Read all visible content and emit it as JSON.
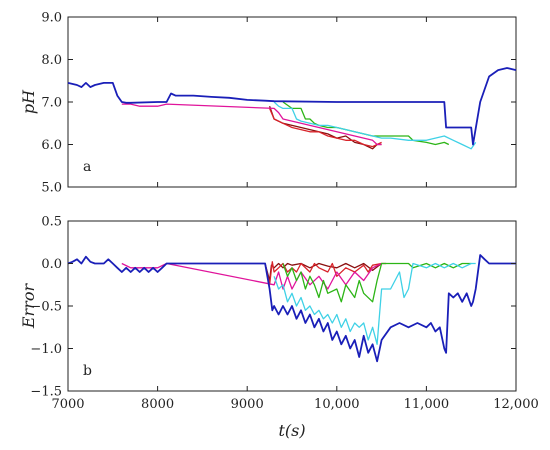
{
  "chart_data": [
    {
      "type": "line",
      "panel_label": "a",
      "title": "",
      "xlabel": "",
      "ylabel": "pH",
      "xlim": [
        7000,
        12000
      ],
      "ylim": [
        5.0,
        9.0
      ],
      "xticks": [
        7000,
        8000,
        9000,
        10000,
        11000,
        12000
      ],
      "xtick_labels": [
        "",
        "",
        "",
        "",
        "",
        ""
      ],
      "yticks": [
        5.0,
        6.0,
        7.0,
        8.0,
        9.0
      ],
      "ytick_labels": [
        "5.0",
        "6.0",
        "7.0",
        "8.0",
        "9.0"
      ],
      "grid": false,
      "series": [
        {
          "color": "#8a0f0f",
          "x": [
            9250,
            9300,
            9400,
            9500,
            9600,
            9700,
            9800,
            9900,
            10000,
            10100,
            10200,
            10300,
            10400,
            10450,
            10500
          ],
          "y": [
            6.9,
            6.6,
            6.5,
            6.45,
            6.4,
            6.35,
            6.3,
            6.25,
            6.15,
            6.2,
            6.05,
            6.0,
            5.9,
            6.0,
            6.0
          ]
        },
        {
          "color": "#d8232a",
          "x": [
            9250,
            9300,
            9400,
            9500,
            9600,
            9700,
            9800,
            9900,
            10000,
            10100,
            10200,
            10300,
            10400,
            10450,
            10500
          ],
          "y": [
            6.85,
            6.6,
            6.5,
            6.4,
            6.35,
            6.3,
            6.3,
            6.2,
            6.15,
            6.1,
            6.1,
            6.0,
            5.95,
            6.0,
            6.05
          ]
        },
        {
          "color": "#e0149b",
          "x": [
            7600,
            7700,
            7800,
            8000,
            8100,
            9300,
            9350,
            9400,
            9500,
            9600,
            9700,
            9800,
            9900,
            10000,
            10100,
            10200,
            10300,
            10400,
            10450,
            10500
          ],
          "y": [
            6.95,
            6.95,
            6.9,
            6.9,
            6.95,
            6.85,
            6.75,
            6.6,
            6.55,
            6.5,
            6.45,
            6.4,
            6.35,
            6.3,
            6.25,
            6.2,
            6.15,
            6.1,
            6.0,
            6.0
          ]
        },
        {
          "color": "#2cb516",
          "x": [
            9400,
            9500,
            9600,
            9650,
            9700,
            9750,
            9800,
            9900,
            10000,
            10100,
            10200,
            10300,
            10400,
            10500,
            10800,
            10850,
            11000,
            11100,
            11200,
            11250
          ],
          "y": [
            7.0,
            6.85,
            6.85,
            6.6,
            6.6,
            6.5,
            6.45,
            6.4,
            6.4,
            6.35,
            6.3,
            6.25,
            6.2,
            6.2,
            6.2,
            6.1,
            6.05,
            6.0,
            6.05,
            6.0
          ]
        },
        {
          "color": "#3fd1e6",
          "x": [
            9300,
            9350,
            9400,
            9500,
            9550,
            9600,
            9700,
            9800,
            9900,
            10000,
            10100,
            10200,
            10300,
            10400,
            10500,
            10600,
            10800,
            10850,
            11000,
            11100,
            11200,
            11300,
            11400,
            11500,
            11550
          ],
          "y": [
            7.0,
            6.9,
            6.85,
            6.85,
            6.6,
            6.55,
            6.5,
            6.45,
            6.45,
            6.4,
            6.35,
            6.3,
            6.25,
            6.2,
            6.15,
            6.15,
            6.1,
            6.1,
            6.1,
            6.15,
            6.2,
            6.1,
            6.0,
            5.9,
            6.05
          ]
        },
        {
          "color": "#1a1fb8",
          "x": [
            7000,
            7100,
            7150,
            7200,
            7250,
            7300,
            7400,
            7500,
            7550,
            7600,
            7650,
            7700,
            8000,
            8100,
            8150,
            8200,
            8400,
            8600,
            8800,
            9000,
            9200,
            9300,
            10000,
            11000,
            11200,
            11220,
            11500,
            11520,
            11600,
            11700,
            11800,
            11900,
            12000
          ],
          "y": [
            7.45,
            7.4,
            7.35,
            7.45,
            7.35,
            7.4,
            7.45,
            7.45,
            7.15,
            7.0,
            6.98,
            6.98,
            7.0,
            7.0,
            7.2,
            7.15,
            7.15,
            7.12,
            7.1,
            7.05,
            7.03,
            7.02,
            7.0,
            7.0,
            7.0,
            6.4,
            6.4,
            6.0,
            7.0,
            7.6,
            7.75,
            7.8,
            7.75
          ]
        }
      ]
    },
    {
      "type": "line",
      "panel_label": "b",
      "title": "",
      "xlabel": "t(s)",
      "ylabel": "Error",
      "xlim": [
        7000,
        12000
      ],
      "ylim": [
        -1.5,
        0.5
      ],
      "xticks": [
        7000,
        8000,
        9000,
        10000,
        11000,
        12000
      ],
      "xtick_labels": [
        "7000",
        "8000",
        "9000",
        "10,000",
        "11,000",
        "12,000"
      ],
      "yticks": [
        -1.5,
        -1.0,
        -0.5,
        0.0,
        0.5
      ],
      "ytick_labels": [
        "−1.5",
        "−1.0",
        "−0.5",
        "0.0",
        "0.5"
      ],
      "grid": false,
      "series": [
        {
          "color": "#8a0f0f",
          "x": [
            9200,
            9250,
            9270,
            9300,
            9350,
            9400,
            9450,
            9500,
            9600,
            9700,
            9800,
            9900,
            10000,
            10100,
            10200,
            10300,
            10400,
            10500,
            10550
          ],
          "y": [
            0.0,
            -0.2,
            -0.02,
            -0.05,
            0.0,
            -0.05,
            0.0,
            -0.02,
            0.0,
            -0.05,
            0.0,
            -0.03,
            -0.05,
            0.0,
            -0.05,
            0.0,
            -0.08,
            0.0,
            0.0
          ]
        },
        {
          "color": "#d8232a",
          "x": [
            9200,
            9250,
            9280,
            9300,
            9350,
            9400,
            9450,
            9500,
            9550,
            9600,
            9700,
            9750,
            9800,
            9900,
            9950,
            10000,
            10100,
            10200,
            10300,
            10350,
            10400,
            10500
          ],
          "y": [
            0.0,
            -0.25,
            0.02,
            -0.1,
            -0.05,
            0.0,
            -0.1,
            -0.05,
            -0.1,
            0.0,
            -0.1,
            0.0,
            -0.05,
            -0.1,
            0.0,
            -0.15,
            -0.05,
            -0.1,
            -0.02,
            -0.1,
            -0.02,
            0.0
          ]
        },
        {
          "color": "#e0149b",
          "x": [
            7600,
            7700,
            7800,
            8000,
            8100,
            9300,
            9350,
            9400,
            9450,
            9500,
            9600,
            9700,
            9800,
            9900,
            10000,
            10100,
            10200,
            10300,
            10400,
            10500
          ],
          "y": [
            0.0,
            -0.05,
            -0.05,
            -0.05,
            0.0,
            -0.25,
            -0.1,
            -0.3,
            -0.15,
            -0.3,
            -0.1,
            -0.25,
            -0.15,
            -0.3,
            -0.1,
            -0.25,
            -0.1,
            -0.2,
            -0.05,
            0.0
          ]
        },
        {
          "color": "#2cb516",
          "x": [
            9400,
            9450,
            9500,
            9550,
            9600,
            9650,
            9700,
            9750,
            9800,
            9850,
            9900,
            10000,
            10050,
            10100,
            10200,
            10250,
            10300,
            10400,
            10450,
            10500,
            10800,
            10850,
            11000,
            11100,
            11200,
            11300,
            11400,
            11500
          ],
          "y": [
            0.0,
            -0.15,
            -0.05,
            -0.2,
            -0.1,
            -0.3,
            -0.15,
            -0.25,
            -0.4,
            -0.2,
            -0.35,
            -0.3,
            -0.45,
            -0.25,
            -0.4,
            -0.2,
            -0.35,
            -0.45,
            -0.2,
            0.0,
            0.0,
            -0.05,
            0.0,
            -0.05,
            0.0,
            -0.05,
            0.0,
            0.0
          ]
        },
        {
          "color": "#3fd1e6",
          "x": [
            9300,
            9350,
            9400,
            9450,
            9500,
            9550,
            9600,
            9650,
            9700,
            9750,
            9800,
            9850,
            9900,
            9950,
            10000,
            10050,
            10100,
            10150,
            10200,
            10250,
            10300,
            10350,
            10400,
            10450,
            10500,
            10600,
            10700,
            10750,
            10800,
            10850,
            11000,
            11100,
            11200,
            11300,
            11400,
            11500,
            11550
          ],
          "y": [
            -0.15,
            -0.3,
            -0.25,
            -0.45,
            -0.35,
            -0.5,
            -0.4,
            -0.55,
            -0.5,
            -0.6,
            -0.55,
            -0.65,
            -0.6,
            -0.7,
            -0.6,
            -0.75,
            -0.65,
            -0.8,
            -0.7,
            -0.75,
            -0.7,
            -0.9,
            -0.75,
            -0.95,
            -0.3,
            -0.3,
            -0.1,
            -0.4,
            -0.3,
            0.0,
            -0.05,
            0.0,
            -0.05,
            0.0,
            -0.05,
            0.0,
            0.0
          ]
        },
        {
          "color": "#1a1fb8",
          "x": [
            7000,
            7050,
            7100,
            7150,
            7200,
            7250,
            7300,
            7400,
            7450,
            7500,
            7550,
            7600,
            7650,
            7700,
            7750,
            7800,
            7850,
            7900,
            7950,
            8000,
            8050,
            8100,
            8200,
            8400,
            8600,
            8800,
            9000,
            9150,
            9200,
            9250,
            9280,
            9300,
            9350,
            9400,
            9450,
            9500,
            9550,
            9600,
            9650,
            9700,
            9750,
            9800,
            9850,
            9900,
            9950,
            10000,
            10050,
            10100,
            10150,
            10200,
            10250,
            10300,
            10350,
            10400,
            10450,
            10500,
            10600,
            10700,
            10800,
            10900,
            11000,
            11050,
            11100,
            11150,
            11200,
            11220,
            11250,
            11300,
            11350,
            11400,
            11450,
            11500,
            11520,
            11550,
            11600,
            11650,
            11700,
            11800,
            11900,
            12000
          ],
          "y": [
            0.0,
            0.02,
            0.05,
            0.0,
            0.08,
            0.02,
            0.0,
            0.0,
            0.05,
            0.0,
            -0.05,
            -0.1,
            -0.05,
            -0.1,
            -0.05,
            -0.1,
            -0.05,
            -0.1,
            -0.05,
            -0.1,
            -0.05,
            0.0,
            0.0,
            0.0,
            0.0,
            0.0,
            0.0,
            0.0,
            0.0,
            -0.3,
            -0.55,
            -0.5,
            -0.6,
            -0.5,
            -0.6,
            -0.5,
            -0.65,
            -0.55,
            -0.7,
            -0.6,
            -0.75,
            -0.65,
            -0.8,
            -0.7,
            -0.9,
            -0.8,
            -0.95,
            -0.85,
            -1.0,
            -0.9,
            -1.1,
            -0.85,
            -1.05,
            -0.95,
            -1.15,
            -0.9,
            -0.75,
            -0.7,
            -0.75,
            -0.7,
            -0.75,
            -0.7,
            -0.8,
            -0.75,
            -1.0,
            -1.05,
            -0.35,
            -0.4,
            -0.35,
            -0.45,
            -0.35,
            -0.5,
            -0.45,
            -0.3,
            0.1,
            0.05,
            0.0,
            0.0,
            0.0,
            0.0
          ]
        }
      ]
    }
  ]
}
